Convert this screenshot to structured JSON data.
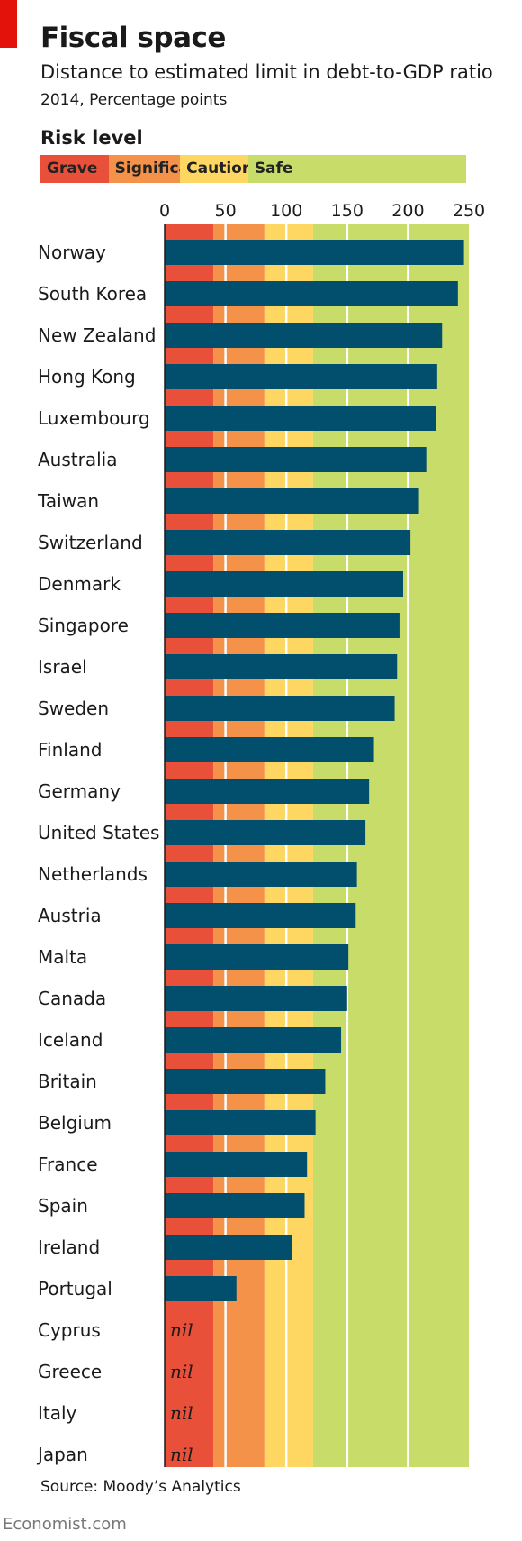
{
  "header": {
    "title": "Fiscal space",
    "subtitle": "Distance to estimated limit in debt-to-GDP ratio",
    "subtitle2": "2014, Percentage points"
  },
  "risk": {
    "label": "Risk level",
    "levels": [
      {
        "name": "Grave",
        "from": 0,
        "to": 40,
        "color": "#e8503a"
      },
      {
        "name": "Significant",
        "from": 40,
        "to": 82,
        "color": "#f4924a"
      },
      {
        "name": "Caution",
        "from": 82,
        "to": 122,
        "color": "#fdd761"
      },
      {
        "name": "Safe",
        "from": 122,
        "to": 250,
        "color": "#c8dc6a"
      }
    ]
  },
  "chart_data": {
    "type": "bar",
    "orientation": "horizontal",
    "xlim": [
      0,
      250
    ],
    "xticks": [
      "0",
      "50",
      "100",
      "150",
      "200",
      "250"
    ],
    "gridlines": true,
    "bar_color": "#024e6d",
    "nil_label": "nil",
    "categories": [
      "Norway",
      "South Korea",
      "New Zealand",
      "Hong Kong",
      "Luxembourg",
      "Australia",
      "Taiwan",
      "Switzerland",
      "Denmark",
      "Singapore",
      "Israel",
      "Sweden",
      "Finland",
      "Germany",
      "United States",
      "Netherlands",
      "Austria",
      "Malta",
      "Canada",
      "Iceland",
      "Britain",
      "Belgium",
      "France",
      "Spain",
      "Ireland",
      "Portugal",
      "Cyprus",
      "Greece",
      "Italy",
      "Japan"
    ],
    "values": [
      246,
      241,
      228,
      224,
      223,
      215,
      209,
      202,
      196,
      193,
      191,
      189,
      172,
      168,
      165,
      158,
      157,
      151,
      150,
      145,
      132,
      124,
      117,
      115,
      105,
      59,
      null,
      null,
      null,
      null
    ]
  },
  "footer": {
    "source": "Source: Moody’s Analytics",
    "brand": "Economist.com"
  }
}
